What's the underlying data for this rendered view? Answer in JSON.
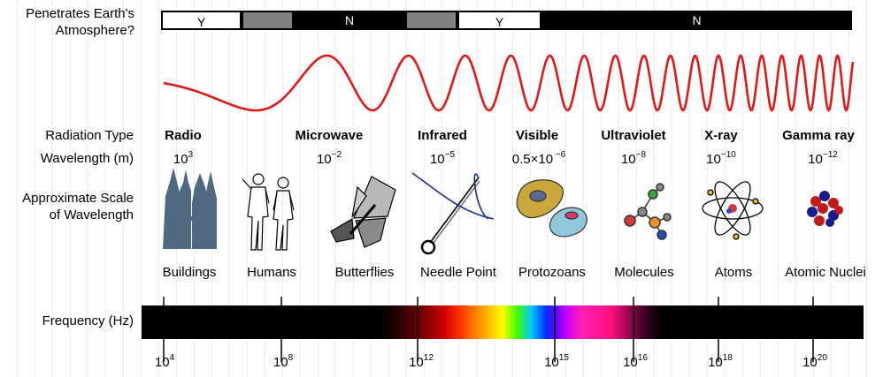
{
  "title_row": {
    "line1": "Penetrates Earth's",
    "line2": "Atmosphere?"
  },
  "atmosphere_segments": [
    {
      "label": "Y",
      "kind": "y"
    },
    {
      "label": "",
      "kind": "g"
    },
    {
      "label": "N",
      "kind": "n"
    },
    {
      "label": "",
      "kind": "g"
    },
    {
      "label": "Y",
      "kind": "y"
    },
    {
      "label": "N",
      "kind": "n"
    }
  ],
  "row_labels": {
    "radiation_type": "Radiation Type",
    "wavelength": "Wavelength (m)",
    "scale_line1": "Approximate Scale",
    "scale_line2": "of Wavelength",
    "frequency": "Frequency (Hz)"
  },
  "columns": [
    {
      "type": "Radio",
      "base": "10",
      "exp": "3",
      "scale": "Buildings",
      "icon": "buildings-icon"
    },
    {
      "type": "",
      "base": "",
      "exp": "",
      "scale": "Humans",
      "icon": "humans-icon"
    },
    {
      "type": "Microwave",
      "base": "10",
      "exp": "−2",
      "scale": "Butterflies",
      "icon": "butterfly-icon"
    },
    {
      "type": "Infrared",
      "base": "10",
      "exp": "−5",
      "scale": "Needle Point",
      "icon": "needle-icon"
    },
    {
      "type": "Visible",
      "base": "0.5×10",
      "exp": " −6",
      "scale": "Protozoans",
      "icon": "protozoa-icon"
    },
    {
      "type": "Ultraviolet",
      "base": "10",
      "exp": "−8",
      "scale": "Molecules",
      "icon": "molecule-icon"
    },
    {
      "type": "X-ray",
      "base": "10",
      "exp": "−10",
      "scale": "Atoms",
      "icon": "atom-icon"
    },
    {
      "type": "Gamma ray",
      "base": "10",
      "exp": "−12",
      "scale": "Atomic Nuclei",
      "icon": "nucleus-icon"
    }
  ],
  "frequency_ticks": [
    {
      "base": "10",
      "exp": "4"
    },
    {
      "base": "10",
      "exp": "8"
    },
    {
      "base": "10",
      "exp": "12"
    },
    {
      "base": "10",
      "exp": "15"
    },
    {
      "base": "10",
      "exp": "16"
    },
    {
      "base": "10",
      "exp": "18"
    },
    {
      "base": "10",
      "exp": "20"
    }
  ],
  "colors": {
    "wave": "#e01818",
    "black": "#000000",
    "slate": "#4f6a80"
  }
}
